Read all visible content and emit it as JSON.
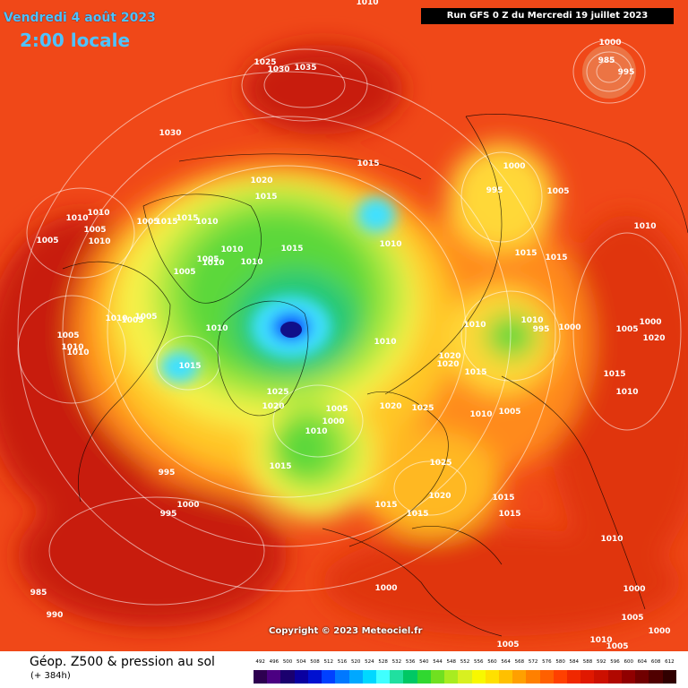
{
  "header": {
    "date": "Vendredi 4 août 2023",
    "time": "2:00 locale",
    "run": "Run GFS 0 Z du Mercredi 19 juillet 2023"
  },
  "copyright": "Copyright © 2023 Meteociel.fr",
  "footer": {
    "product": "Géop. Z500 & pression au sol",
    "lead": "(+ 384h)"
  },
  "scale": {
    "labels": [
      "492",
      "496",
      "500",
      "504",
      "508",
      "512",
      "516",
      "520",
      "524",
      "528",
      "532",
      "536",
      "540",
      "544",
      "548",
      "552",
      "556",
      "560",
      "564",
      "568",
      "572",
      "576",
      "580",
      "584",
      "588",
      "592",
      "596",
      "600",
      "604",
      "608",
      "612"
    ],
    "colors": [
      "#2d0050",
      "#4b0082",
      "#1a006e",
      "#0a00a0",
      "#0010d0",
      "#0040ff",
      "#0078ff",
      "#00a8ff",
      "#00d8ff",
      "#40ffff",
      "#20e0a0",
      "#00c864",
      "#30d830",
      "#70e020",
      "#a8ec20",
      "#d8f020",
      "#f8f800",
      "#ffe000",
      "#ffc000",
      "#ffa000",
      "#ff8000",
      "#ff6000",
      "#ff4000",
      "#f02800",
      "#e01800",
      "#cc1000",
      "#b00800",
      "#900000",
      "#700000",
      "#500000",
      "#300000"
    ]
  },
  "pressure_labels": [
    "1010",
    "1025",
    "1030",
    "1035",
    "1030",
    "1000",
    "985",
    "995",
    "1020",
    "1015",
    "1015",
    "1010",
    "1015",
    "1005",
    "1010",
    "1010",
    "1005",
    "1010",
    "1005",
    "1010",
    "1015",
    "1010",
    "1010",
    "1005",
    "1005",
    "1000",
    "1005",
    "995",
    "1015",
    "1010",
    "1015",
    "1015",
    "1010",
    "1010",
    "1010",
    "995",
    "1000",
    "1005",
    "1000",
    "1020",
    "1005",
    "1010",
    "1005",
    "1005",
    "1010",
    "1010",
    "1025",
    "1020",
    "1005",
    "1000",
    "1010",
    "1020",
    "1025",
    "1010",
    "1020",
    "1020",
    "1015",
    "1010",
    "1005",
    "1015",
    "1015",
    "1010",
    "1025",
    "1020",
    "1015",
    "1015",
    "1015",
    "1015",
    "995",
    "1000",
    "995",
    "985",
    "990",
    "1000",
    "1005",
    "1000",
    "1005",
    "1000",
    "1010",
    "1005",
    "1010",
    "1015",
    "1010"
  ]
}
